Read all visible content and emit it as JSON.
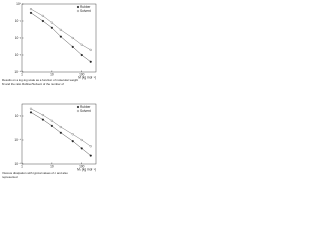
{
  "chart_data": [
    {
      "type": "scatter",
      "log_x": true,
      "log_y": true,
      "x": [
        2,
        5,
        10,
        20,
        50,
        100,
        200
      ],
      "series": [
        {
          "name": "Rubber",
          "color": "#222222",
          "marker": "filled",
          "values": [
            0.3,
            0.1,
            0.04,
            0.012,
            0.003,
            0.001,
            0.0004
          ]
        },
        {
          "name": "Solvent",
          "color": "#555555",
          "marker": "open",
          "values": [
            0.5,
            0.2,
            0.08,
            0.03,
            0.01,
            0.004,
            0.002
          ]
        }
      ],
      "xlim": [
        1,
        300
      ],
      "xticks": [
        1,
        10,
        100
      ],
      "ylim": [
        0.0001,
        1
      ],
      "yticks": [
        {
          "value": 0.0001,
          "label": "10⁻⁴"
        },
        {
          "value": 0.001,
          "label": "10⁻³"
        },
        {
          "value": 0.01,
          "label": "10⁻²"
        },
        {
          "value": 0.1,
          "label": "10⁻¹"
        },
        {
          "value": 1,
          "label": "10⁰"
        }
      ],
      "xlabel": "M (kg mol⁻¹)",
      "legend": "upper right",
      "caption": [
        "Results on a log-log scale as a function of molecular weight",
        "M and the ratio Rubber/Solvent of the number of"
      ]
    },
    {
      "type": "scatter",
      "log_x": true,
      "log_y": true,
      "x": [
        2,
        5,
        10,
        20,
        50,
        100,
        200
      ],
      "series": [
        {
          "name": "Rubber",
          "color": "#222222",
          "marker": "filled",
          "values": [
            0.02,
            0.005,
            0.0015,
            0.0004,
            8e-05,
            2e-05,
            5e-06
          ]
        },
        {
          "name": "Solvent",
          "color": "#555555",
          "marker": "open",
          "values": [
            0.04,
            0.012,
            0.004,
            0.0012,
            0.0003,
            0.0001,
            3e-05
          ]
        }
      ],
      "xlim": [
        1,
        300
      ],
      "xticks": [
        1,
        10,
        100
      ],
      "ylim": [
        1e-06,
        0.1
      ],
      "yticks": [
        {
          "value": 1e-06,
          "label": "10⁻⁶"
        },
        {
          "value": 0.0001,
          "label": "10⁻⁴"
        },
        {
          "value": 0.01,
          "label": "10⁻²"
        }
      ],
      "xlabel": "Mᵥ (kg mol⁻¹)",
      "legend": "upper right",
      "caption": [
        "Viscous dissipation with typical values of c and also",
        "represented"
      ]
    }
  ]
}
